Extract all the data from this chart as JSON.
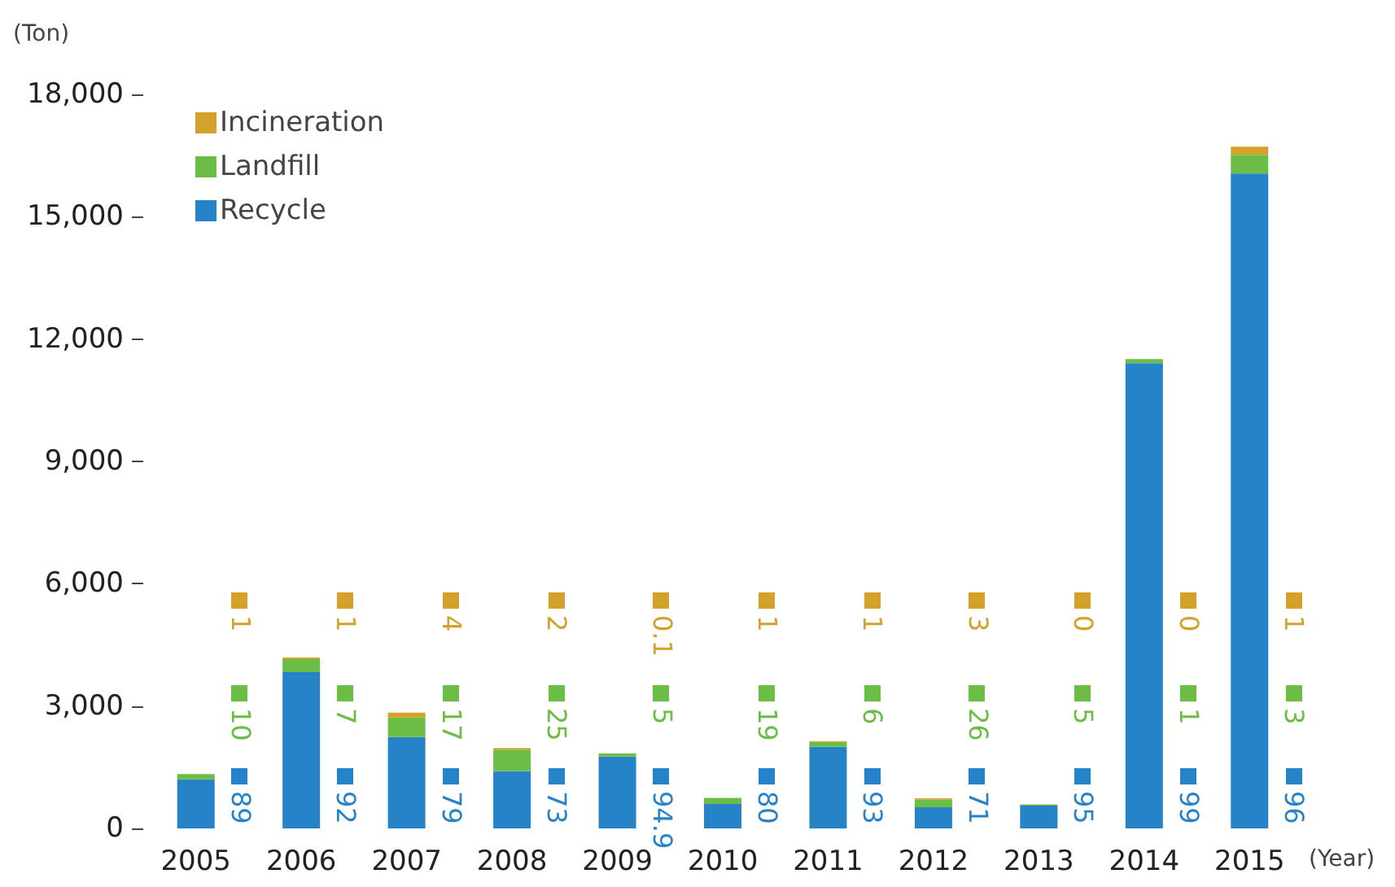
{
  "chart_data": {
    "type": "bar",
    "stacked": true,
    "ylabel": "(Ton)",
    "xlabel": "(Year)",
    "categories": [
      "2005",
      "2006",
      "2007",
      "2008",
      "2009",
      "2010",
      "2011",
      "2012",
      "2013",
      "2014",
      "2015"
    ],
    "series": [
      {
        "name": "Recycle",
        "color": "#2783c8",
        "values": [
          1200,
          3830,
          2240,
          1400,
          1760,
          600,
          2000,
          520,
          560,
          11410,
          16060
        ]
      },
      {
        "name": "Landfill",
        "color": "#6cbd45",
        "values": [
          130,
          320,
          480,
          530,
          80,
          150,
          120,
          190,
          30,
          100,
          460
        ]
      },
      {
        "name": "Incineration",
        "color": "#d4a22a",
        "values": [
          null,
          40,
          120,
          40,
          0,
          null,
          20,
          30,
          0,
          0,
          200
        ]
      }
    ],
    "annotations": [
      "89",
      "92",
      "79",
      "73",
      "94.9",
      "80",
      "93",
      "71",
      "95",
      "99",
      "96",
      "10",
      "7",
      "17",
      "25",
      "5",
      "19",
      "6",
      "26",
      "5",
      "1",
      "3",
      "1",
      "1",
      "4",
      "2",
      "0.1",
      "1",
      "1",
      "3",
      "0",
      "0",
      "1"
    ],
    "ylim": [
      0,
      18000
    ],
    "yticks": [
      0,
      {
        "value": 3000,
        "label": "3,000"
      },
      {
        "value": 6000,
        "label": "6,000"
      },
      {
        "value": 9000,
        "label": "9,000"
      },
      {
        "value": 12000,
        "label": "12,000"
      },
      {
        "value": 15000,
        "label": "15,000"
      },
      {
        "value": 18000,
        "label": "18,000"
      }
    ],
    "grid": false,
    "legend": "top left"
  }
}
